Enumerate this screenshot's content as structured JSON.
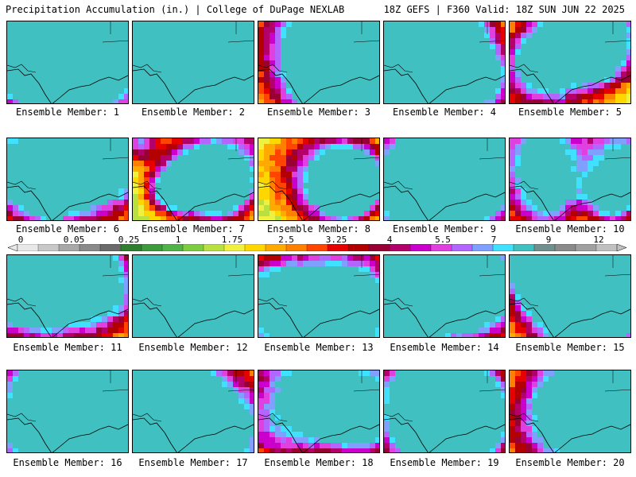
{
  "header": {
    "title": "Precipitation Accumulation (in.) | College of DuPage NEXLAB",
    "run_info": "18Z GEFS | F360 Valid: 18Z SUN JUN 22 2025"
  },
  "panels": [
    {
      "label": "Ensemble Member: 1",
      "seed": 11
    },
    {
      "label": "Ensemble Member: 2",
      "seed": 23
    },
    {
      "label": "Ensemble Member: 3",
      "seed": 37
    },
    {
      "label": "Ensemble Member: 4",
      "seed": 41
    },
    {
      "label": "Ensemble Member: 5",
      "seed": 53
    },
    {
      "label": "Ensemble Member: 6",
      "seed": 67
    },
    {
      "label": "Ensemble Member: 7",
      "seed": 71
    },
    {
      "label": "Ensemble Member: 8",
      "seed": 83
    },
    {
      "label": "Ensemble Member: 9",
      "seed": 97
    },
    {
      "label": "Ensemble Member: 10",
      "seed": 101
    },
    {
      "label": "Ensemble Member: 11",
      "seed": 113
    },
    {
      "label": "Ensemble Member: 12",
      "seed": 127
    },
    {
      "label": "Ensemble Member: 13",
      "seed": 131
    },
    {
      "label": "Ensemble Member: 14",
      "seed": 149
    },
    {
      "label": "Ensemble Member: 15",
      "seed": 151
    },
    {
      "label": "Ensemble Member: 16",
      "seed": 163
    },
    {
      "label": "Ensemble Member: 17",
      "seed": 173
    },
    {
      "label": "Ensemble Member: 18",
      "seed": 181
    },
    {
      "label": "Ensemble Member: 19",
      "seed": 191
    },
    {
      "label": "Ensemble Member: 20",
      "seed": 199
    }
  ],
  "colorbar": {
    "labels": [
      "0",
      "0.05",
      "0.25",
      "1",
      "1.75",
      "2.5",
      "3.25",
      "4",
      "5.5",
      "7",
      "9",
      "12"
    ],
    "colors": [
      "#e8e8e8",
      "#c8c8c8",
      "#a8a8a8",
      "#8a8a8a",
      "#6b6b6b",
      "#2f7f2f",
      "#3d9a3d",
      "#4fb34a",
      "#7ccd3f",
      "#b8e040",
      "#f0f040",
      "#ffd700",
      "#ffaa00",
      "#ff7f00",
      "#ff4500",
      "#e60000",
      "#b30000",
      "#990033",
      "#b3006b",
      "#cc00cc",
      "#e040e0",
      "#b366ff",
      "#7fa0ff",
      "#40e0ff",
      "#40c0c0",
      "#709090",
      "#8a8a8a",
      "#a0a0a0",
      "#c0c0c0"
    ]
  }
}
